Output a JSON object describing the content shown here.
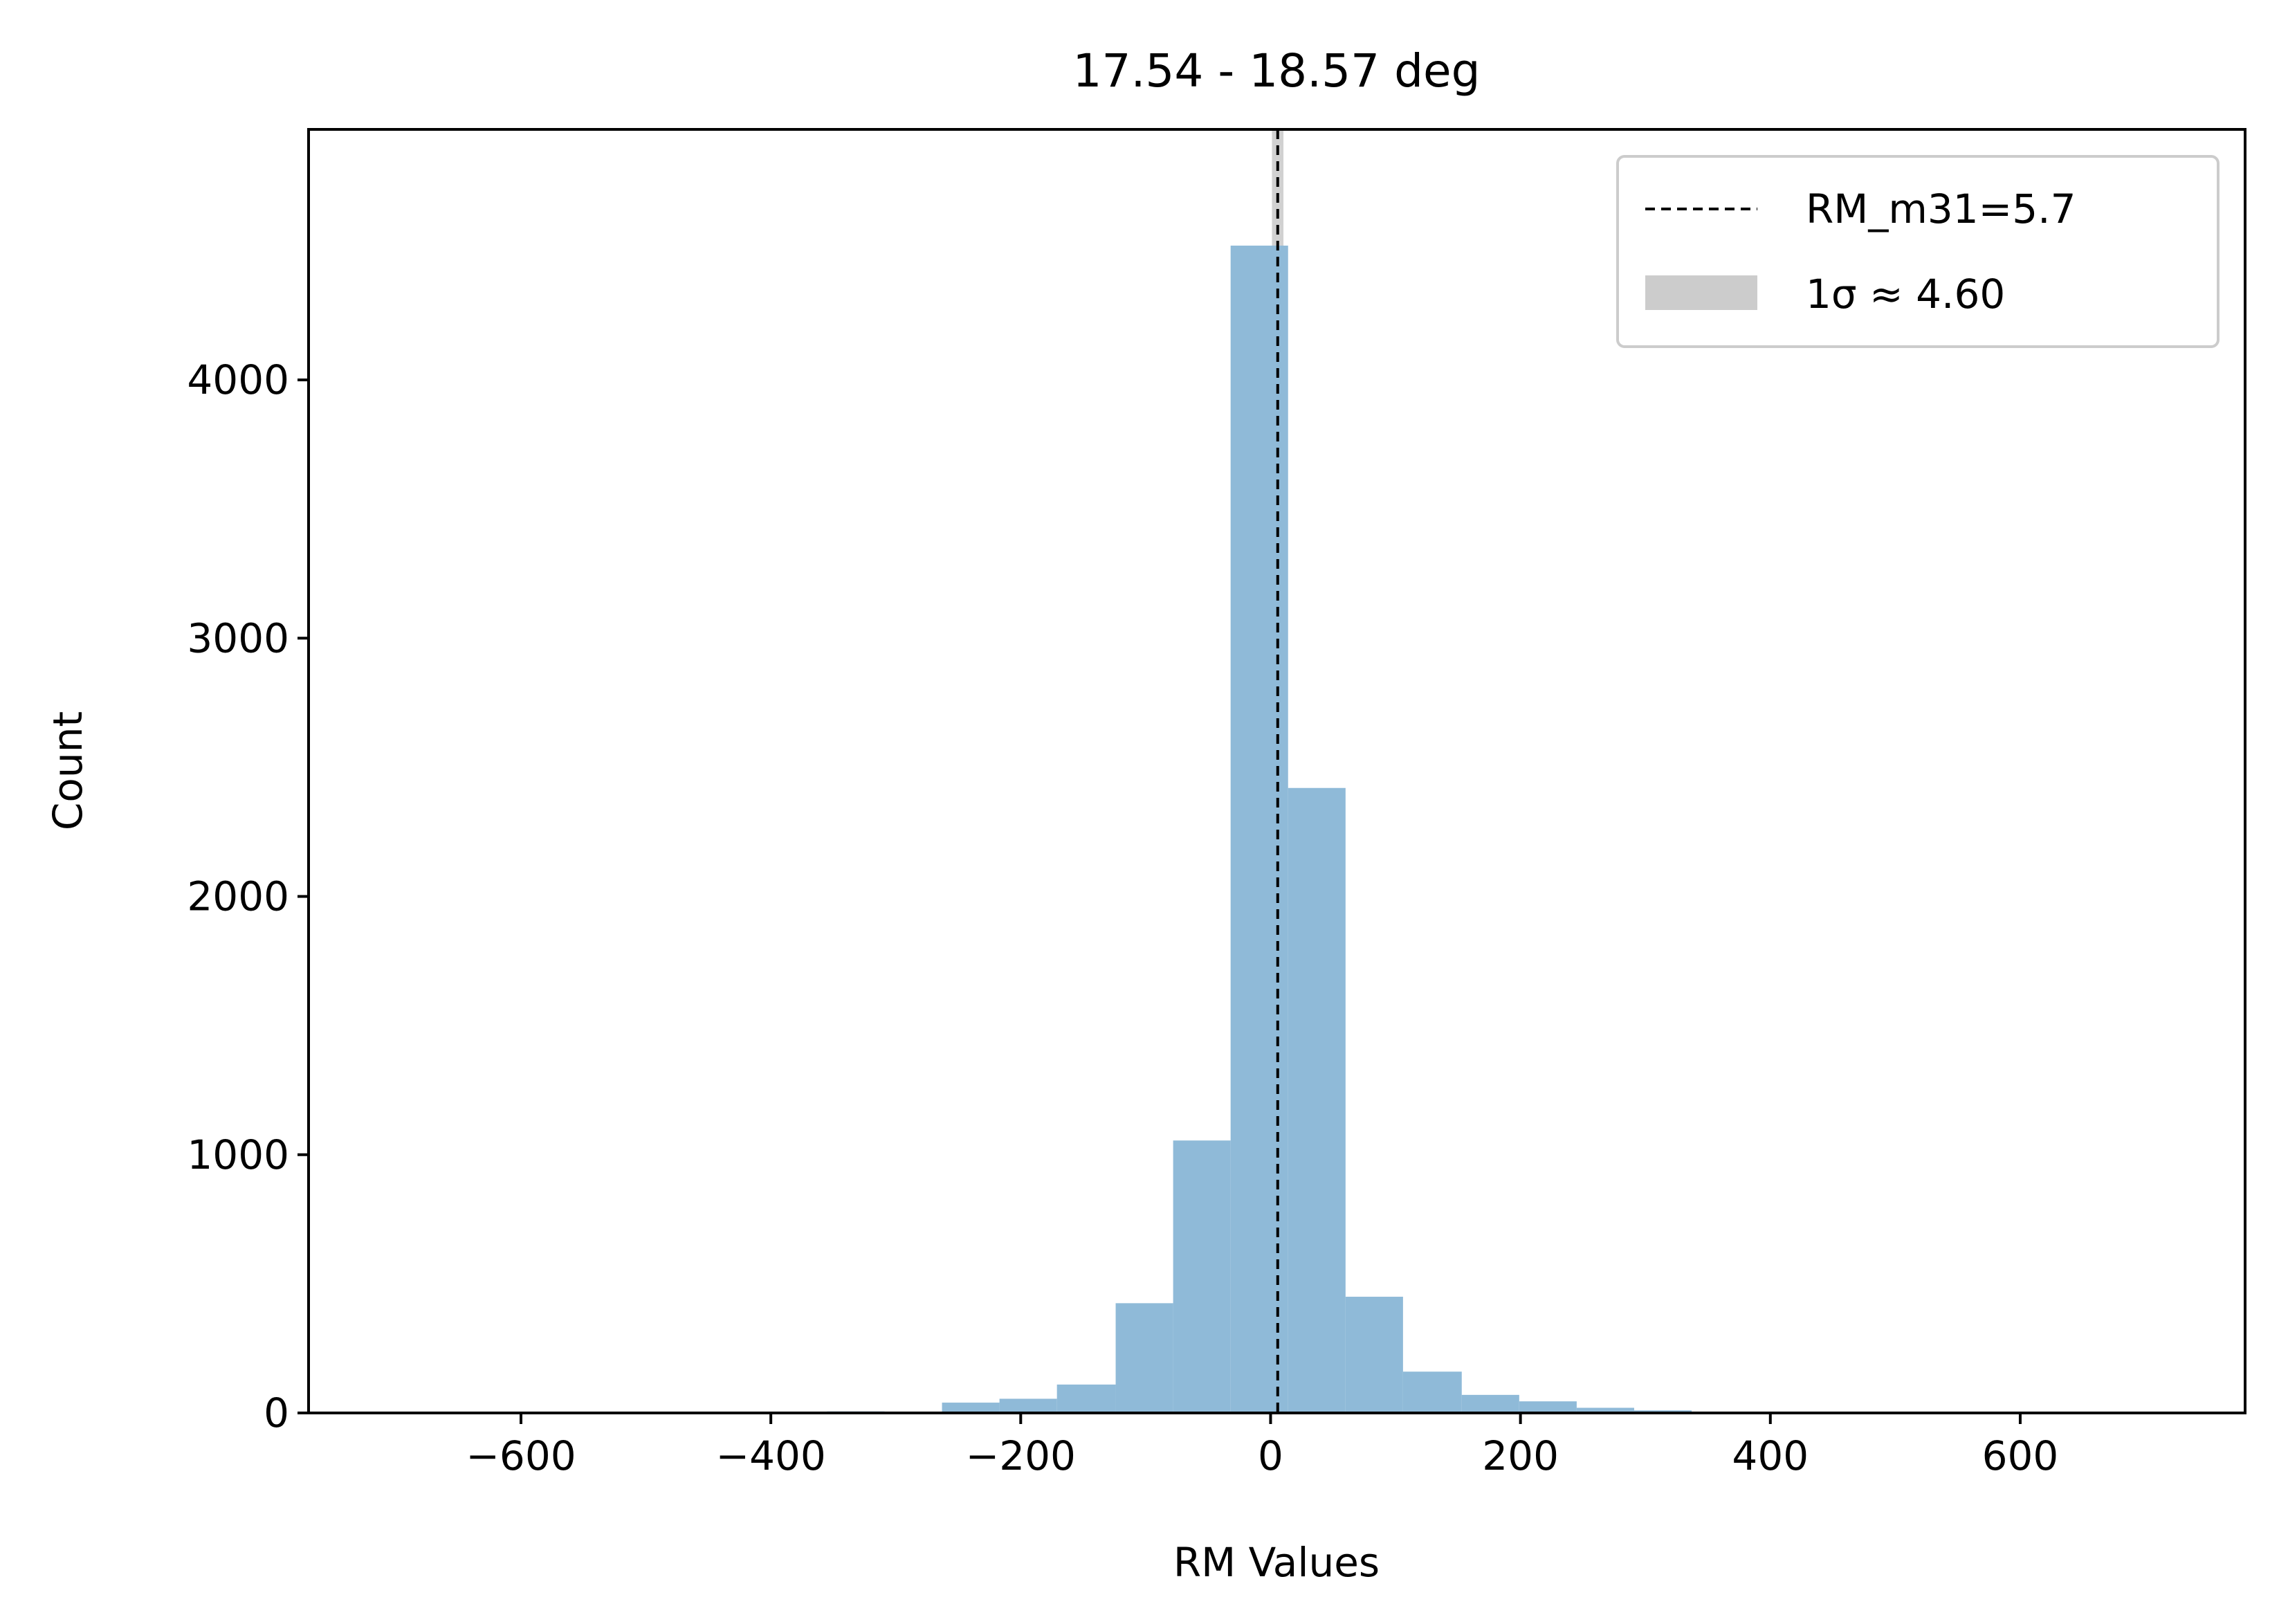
{
  "chart_data": {
    "type": "histogram",
    "title": "17.54 - 18.57 deg",
    "xlabel": "RM Values",
    "ylabel": "Count",
    "xlim": [
      -770,
      780
    ],
    "ylim": [
      0,
      4970
    ],
    "xticks": [
      -600,
      -400,
      -200,
      0,
      200,
      400,
      600
    ],
    "xtick_labels": [
      "−600",
      "−400",
      "−200",
      "0",
      "200",
      "400",
      "600"
    ],
    "yticks": [
      0,
      1000,
      2000,
      3000,
      4000
    ],
    "ytick_labels": [
      "0",
      "1000",
      "2000",
      "3000",
      "4000"
    ],
    "bar_color": "#8fbad8",
    "bins": [
      {
        "x0": -355,
        "x1": -309,
        "count": 6
      },
      {
        "x0": -309,
        "x1": -263,
        "count": 3
      },
      {
        "x0": -263,
        "x1": -217,
        "count": 40
      },
      {
        "x0": -217,
        "x1": -171,
        "count": 55
      },
      {
        "x0": -171,
        "x1": -124,
        "count": 110
      },
      {
        "x0": -124,
        "x1": -78,
        "count": 425
      },
      {
        "x0": -78,
        "x1": -32,
        "count": 1055
      },
      {
        "x0": -32,
        "x1": 14,
        "count": 4520
      },
      {
        "x0": 14,
        "x1": 60,
        "count": 2420
      },
      {
        "x0": 60,
        "x1": 106,
        "count": 450
      },
      {
        "x0": 106,
        "x1": 153,
        "count": 160
      },
      {
        "x0": 153,
        "x1": 199,
        "count": 70
      },
      {
        "x0": 199,
        "x1": 245,
        "count": 45
      },
      {
        "x0": 245,
        "x1": 291,
        "count": 20
      },
      {
        "x0": 291,
        "x1": 337,
        "count": 10
      },
      {
        "x0": 337,
        "x1": 383,
        "count": 3
      }
    ],
    "reference_line": {
      "x": 5.7,
      "label": "RM_m31=5.7",
      "style": "dashed",
      "color": "#000000"
    },
    "sigma_band": {
      "center": 5.7,
      "half_width": 4.6,
      "label": "1σ ≈ 4.60",
      "color": "#cccccc"
    },
    "legend": {
      "placement": "top-right"
    },
    "grid": false
  }
}
